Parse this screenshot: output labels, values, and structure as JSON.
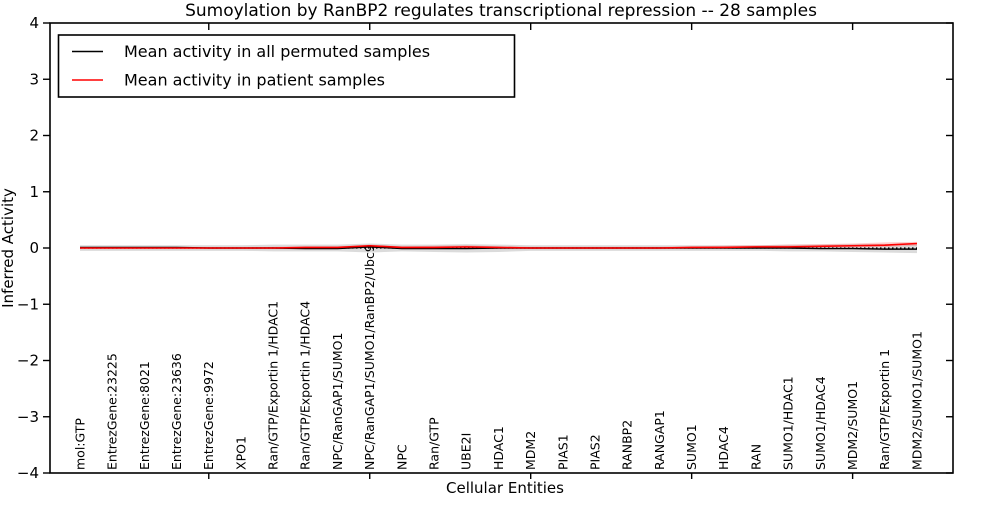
{
  "chart_data": {
    "type": "line",
    "title": "Sumoylation by RanBP2 regulates transcriptional repression -- 28 samples",
    "xlabel": "Cellular Entities",
    "ylabel": "Inferred Activity",
    "ylim": [
      -4,
      4
    ],
    "yticks": [
      -4,
      -3,
      -2,
      -1,
      0,
      1,
      2,
      3,
      4
    ],
    "x_numeric_ticks": [
      5,
      10,
      15,
      20,
      25
    ],
    "grid": false,
    "legend_position": "upper left",
    "zero_line": {
      "y": 0,
      "style": "dotted",
      "color": "#000000"
    },
    "categories": [
      "mol:GTP",
      "EntrezGene:23225",
      "EntrezGene:8021",
      "EntrezGene:23636",
      "EntrezGene:9972",
      "XPO1",
      "Ran/GTP/Exportin 1/HDAC1",
      "Ran/GTP/Exportin 1/HDAC4",
      "NPC/RanGAP1/SUMO1",
      "NPC/RanGAP1/SUMO1/RanBP2/Ubc9",
      "NPC",
      "Ran/GTP",
      "UBE2I",
      "HDAC1",
      "MDM2",
      "PIAS1",
      "PIAS2",
      "RANBP2",
      "RANGAP1",
      "SUMO1",
      "HDAC4",
      "RAN",
      "SUMO1/HDAC1",
      "SUMO1/HDAC4",
      "MDM2/SUMO1",
      "Ran/GTP/Exportin 1",
      "MDM2/SUMO1/SUMO1"
    ],
    "series": [
      {
        "name": "Mean activity in all permuted samples",
        "color": "#000000",
        "values": [
          0.01,
          0.01,
          0.01,
          0.01,
          0.0,
          0.0,
          0.0,
          -0.01,
          -0.01,
          0.02,
          -0.01,
          -0.01,
          -0.01,
          0.0,
          0.0,
          0.0,
          0.0,
          0.0,
          0.0,
          0.0,
          0.0,
          0.0,
          0.0,
          -0.01,
          -0.01,
          -0.02,
          -0.02
        ]
      },
      {
        "name": "Mean activity in patient samples",
        "color": "#ff0000",
        "values": [
          0.0,
          0.0,
          0.0,
          0.0,
          0.0,
          0.0,
          0.0,
          0.01,
          0.01,
          0.04,
          0.01,
          0.01,
          0.02,
          0.01,
          0.0,
          0.0,
          0.0,
          0.0,
          0.0,
          0.01,
          0.01,
          0.02,
          0.02,
          0.03,
          0.04,
          0.05,
          0.08
        ]
      }
    ],
    "bands": [
      {
        "name": "permuted-activity-range",
        "color": "#999999",
        "opacity": 0.35,
        "upper": [
          0.05,
          0.05,
          0.05,
          0.05,
          0.05,
          0.05,
          0.06,
          0.06,
          0.06,
          0.08,
          0.06,
          0.06,
          0.07,
          0.06,
          0.05,
          0.05,
          0.05,
          0.05,
          0.05,
          0.05,
          0.05,
          0.05,
          0.06,
          0.06,
          0.07,
          0.07,
          0.08
        ],
        "lower": [
          -0.05,
          -0.05,
          -0.05,
          -0.05,
          -0.05,
          -0.05,
          -0.06,
          -0.06,
          -0.06,
          -0.08,
          -0.06,
          -0.07,
          -0.08,
          -0.07,
          -0.05,
          -0.05,
          -0.05,
          -0.05,
          -0.05,
          -0.05,
          -0.05,
          -0.05,
          -0.06,
          -0.06,
          -0.07,
          -0.08,
          -0.09
        ]
      },
      {
        "name": "patient-activity-range",
        "color": "#ff2222",
        "opacity": 0.22,
        "upper": [
          0.01,
          0.01,
          0.01,
          0.01,
          0.01,
          0.01,
          0.02,
          0.03,
          0.03,
          0.06,
          0.03,
          0.04,
          0.05,
          0.03,
          0.02,
          0.02,
          0.02,
          0.02,
          0.02,
          0.03,
          0.04,
          0.05,
          0.06,
          0.07,
          0.08,
          0.1,
          0.11
        ],
        "lower": [
          -0.02,
          -0.02,
          -0.02,
          -0.02,
          -0.02,
          -0.02,
          -0.02,
          -0.02,
          -0.02,
          0.0,
          -0.02,
          -0.02,
          -0.02,
          -0.02,
          -0.02,
          -0.02,
          -0.02,
          -0.02,
          -0.02,
          -0.01,
          0.0,
          0.0,
          0.0,
          0.01,
          0.01,
          0.02,
          0.04
        ]
      }
    ]
  },
  "colors": {
    "background": "#ffffff",
    "axis": "#000000",
    "permuted_line": "#000000",
    "patient_line": "#ff0000"
  }
}
